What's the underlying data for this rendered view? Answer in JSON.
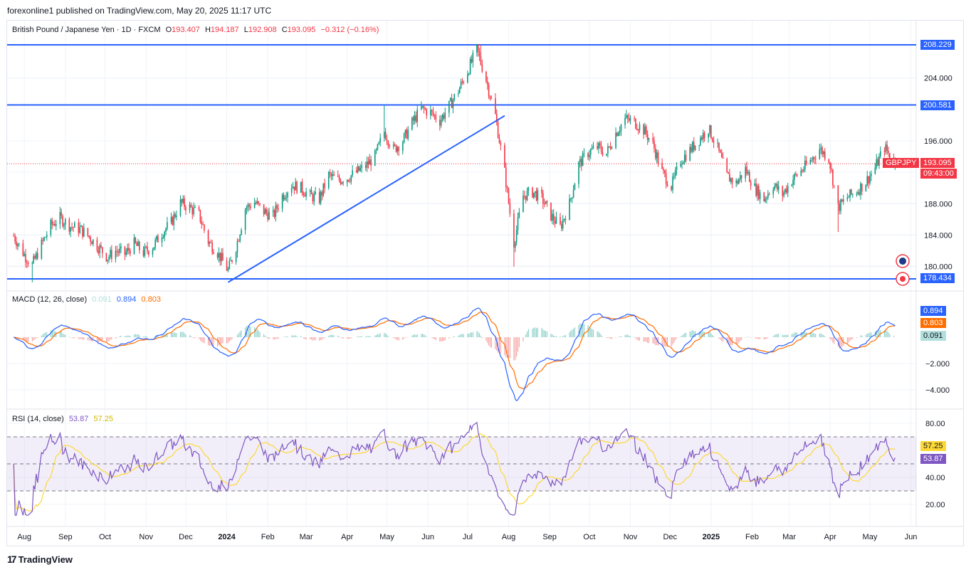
{
  "header": {
    "publisher": "forexonline1 published on TradingView.com, May 20, 2025 11:17 UTC"
  },
  "symbol": {
    "name": "British Pound / Japanese Yen · 1D · FXCM",
    "o_label": "O",
    "o": "193.407",
    "h_label": "H",
    "h": "194.187",
    "l_label": "L",
    "l": "192.908",
    "c_label": "C",
    "c": "193.095",
    "change": "−0.312 (−0.16%)",
    "ticker": "GBPJPY",
    "countdown": "09:43:00"
  },
  "colors": {
    "up": "#089981",
    "down": "#f23645",
    "line": "#2962ff",
    "macd": "#2962ff",
    "signal": "#ff6d00",
    "rsi": "#7e57c2",
    "rsi_ma": "#fdd835"
  },
  "levels": {
    "top": "208.229",
    "mid": "200.581",
    "bottom": "178.434"
  },
  "indicators": {
    "macd": {
      "label": "MACD (12, 26, close)",
      "hist": "0.091",
      "macd": "0.894",
      "signal": "0.803"
    },
    "rsi": {
      "label": "RSI (14, close)",
      "rsi": "53.87",
      "ma": "57.25"
    }
  },
  "branding": {
    "logo_text": "TradingView",
    "logo_mark": "17"
  },
  "chart_data": {
    "type": "candlestick",
    "title": "British Pound / Japanese Yen · 1D · FXCM",
    "price_ticks": [
      "204.000",
      "196.000",
      "188.000",
      "184.000",
      "180.000"
    ],
    "price_tick_values": [
      204,
      196,
      188,
      184,
      180
    ],
    "x_labels": [
      "Aug",
      "Sep",
      "Oct",
      "Nov",
      "Dec",
      "2024",
      "Feb",
      "Mar",
      "Apr",
      "May",
      "Jun",
      "Jul",
      "Aug",
      "Sep",
      "Oct",
      "Nov",
      "Dec",
      "2025",
      "Feb",
      "Mar",
      "Apr",
      "May",
      "Jun"
    ],
    "x_label_bold": [
      "2024",
      "2025"
    ],
    "horizontal_levels": [
      208.229,
      200.581,
      178.434
    ],
    "trendline": {
      "from": {
        "date": "2024-01-02",
        "price": 178.0
      },
      "to": {
        "date": "2024-07-29",
        "price": 199.2
      }
    },
    "close_path": [
      [
        "2023-07-24",
        183.9
      ],
      [
        "2023-08-01",
        181.5
      ],
      [
        "2023-08-07",
        180.2
      ],
      [
        "2023-08-14",
        182.8
      ],
      [
        "2023-08-21",
        185.2
      ],
      [
        "2023-08-28",
        186.2
      ],
      [
        "2023-09-05",
        185.1
      ],
      [
        "2023-09-12",
        184.8
      ],
      [
        "2023-09-19",
        183.8
      ],
      [
        "2023-09-26",
        182.5
      ],
      [
        "2023-10-03",
        181.2
      ],
      [
        "2023-10-09",
        182.0
      ],
      [
        "2023-10-16",
        181.6
      ],
      [
        "2023-10-23",
        182.9
      ],
      [
        "2023-10-30",
        181.8
      ],
      [
        "2023-11-06",
        182.5
      ],
      [
        "2023-11-13",
        184.3
      ],
      [
        "2023-11-20",
        185.6
      ],
      [
        "2023-11-27",
        188.1
      ],
      [
        "2023-12-04",
        187.5
      ],
      [
        "2023-12-11",
        186.6
      ],
      [
        "2023-12-18",
        183.2
      ],
      [
        "2023-12-25",
        181.8
      ],
      [
        "2024-01-02",
        179.5
      ],
      [
        "2024-01-08",
        182.5
      ],
      [
        "2024-01-15",
        187.4
      ],
      [
        "2024-01-22",
        188.2
      ],
      [
        "2024-01-29",
        187.0
      ],
      [
        "2024-02-05",
        186.4
      ],
      [
        "2024-02-12",
        189.0
      ],
      [
        "2024-02-19",
        190.4
      ],
      [
        "2024-02-26",
        190.0
      ],
      [
        "2024-03-04",
        189.0
      ],
      [
        "2024-03-11",
        188.6
      ],
      [
        "2024-03-18",
        191.6
      ],
      [
        "2024-03-25",
        191.0
      ],
      [
        "2024-04-01",
        191.3
      ],
      [
        "2024-04-08",
        192.0
      ],
      [
        "2024-04-15",
        192.8
      ],
      [
        "2024-04-22",
        194.0
      ],
      [
        "2024-04-29",
        197.2
      ],
      [
        "2024-05-06",
        194.9
      ],
      [
        "2024-05-13",
        196.0
      ],
      [
        "2024-05-20",
        198.3
      ],
      [
        "2024-05-27",
        200.1
      ],
      [
        "2024-06-03",
        199.6
      ],
      [
        "2024-06-10",
        198.6
      ],
      [
        "2024-06-17",
        200.4
      ],
      [
        "2024-06-24",
        202.4
      ],
      [
        "2024-07-01",
        204.9
      ],
      [
        "2024-07-08",
        207.6
      ],
      [
        "2024-07-15",
        203.8
      ],
      [
        "2024-07-22",
        199.2
      ],
      [
        "2024-07-29",
        192.0
      ],
      [
        "2024-08-05",
        183.0
      ],
      [
        "2024-08-12",
        189.0
      ],
      [
        "2024-08-19",
        189.5
      ],
      [
        "2024-08-26",
        188.7
      ],
      [
        "2024-09-02",
        186.5
      ],
      [
        "2024-09-09",
        185.0
      ],
      [
        "2024-09-16",
        188.0
      ],
      [
        "2024-09-23",
        193.0
      ],
      [
        "2024-09-30",
        194.5
      ],
      [
        "2024-10-07",
        195.2
      ],
      [
        "2024-10-14",
        194.4
      ],
      [
        "2024-10-21",
        197.0
      ],
      [
        "2024-10-28",
        198.8
      ],
      [
        "2024-11-04",
        198.4
      ],
      [
        "2024-11-11",
        197.4
      ],
      [
        "2024-11-18",
        195.6
      ],
      [
        "2024-11-25",
        192.0
      ],
      [
        "2024-12-02",
        190.2
      ],
      [
        "2024-12-09",
        193.5
      ],
      [
        "2024-12-16",
        194.8
      ],
      [
        "2024-12-23",
        196.2
      ],
      [
        "2024-12-30",
        197.6
      ],
      [
        "2025-01-06",
        195.0
      ],
      [
        "2025-01-13",
        191.5
      ],
      [
        "2025-01-20",
        190.6
      ],
      [
        "2025-01-27",
        192.4
      ],
      [
        "2025-02-03",
        190.0
      ],
      [
        "2025-02-10",
        188.6
      ],
      [
        "2025-02-17",
        190.4
      ],
      [
        "2025-02-24",
        189.2
      ],
      [
        "2025-03-03",
        191.0
      ],
      [
        "2025-03-10",
        192.2
      ],
      [
        "2025-03-17",
        193.4
      ],
      [
        "2025-03-24",
        195.0
      ],
      [
        "2025-03-31",
        193.8
      ],
      [
        "2025-04-07",
        187.5
      ],
      [
        "2025-04-14",
        188.8
      ],
      [
        "2025-04-21",
        189.6
      ],
      [
        "2025-04-28",
        190.8
      ],
      [
        "2025-05-05",
        192.6
      ],
      [
        "2025-05-12",
        195.2
      ],
      [
        "2025-05-20",
        193.1
      ]
    ],
    "macd_levels": [
      "−2.000",
      "−4.000"
    ],
    "macd_level_values": [
      -2,
      -4
    ],
    "rsi_levels": [
      "80.00",
      "40.00",
      "20.00"
    ],
    "rsi_level_values": [
      80,
      40,
      20
    ],
    "rsi_bands": {
      "upper": 70,
      "middle": 50,
      "lower": 30
    }
  }
}
